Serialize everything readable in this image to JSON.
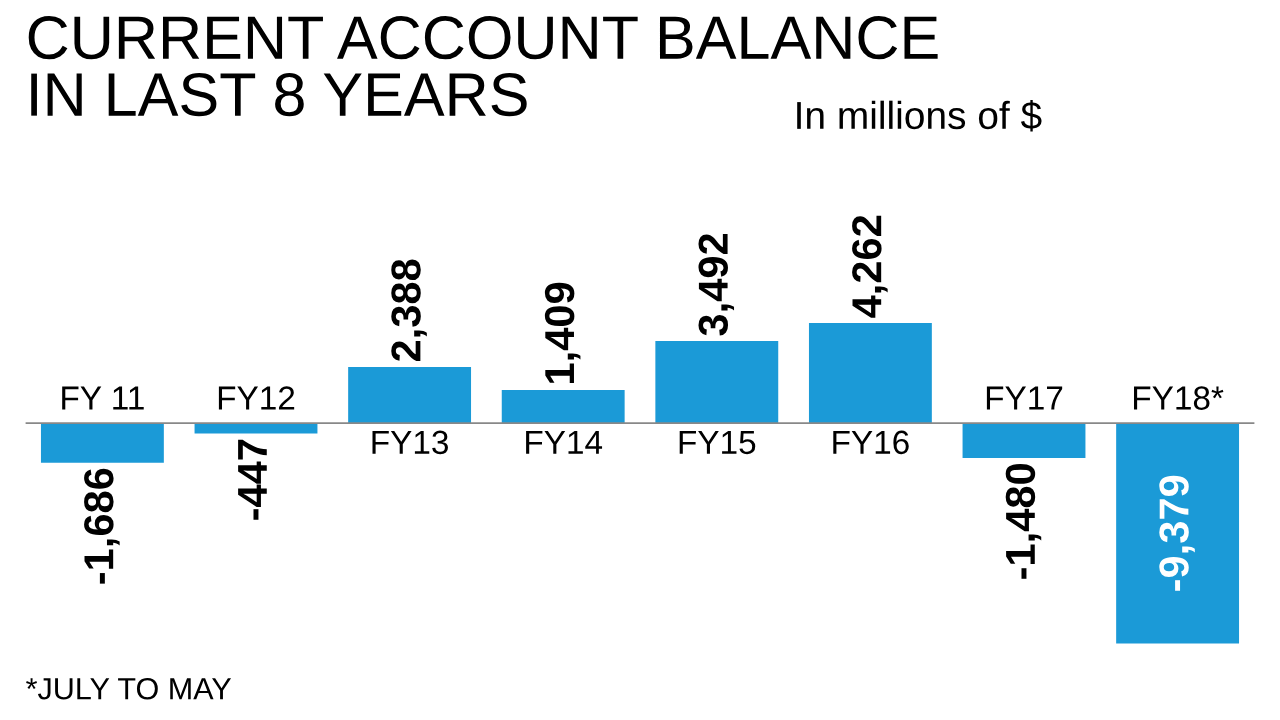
{
  "chart_data": {
    "type": "bar",
    "title": "CURRENT ACCOUNT BALANCE\nIN LAST 8 YEARS",
    "subtitle": "In millions of $",
    "categories": [
      "FY 11",
      "FY12",
      "FY13",
      "FY14",
      "FY15",
      "FY16",
      "FY17",
      "FY18*"
    ],
    "values": [
      -1686,
      -447,
      2388,
      1409,
      3492,
      4262,
      -1480,
      -9379
    ],
    "value_labels": [
      "-1,686",
      "-447",
      "2,388",
      "1,409",
      "3,492",
      "4,262",
      "-1,480",
      "-9,379"
    ],
    "color": "#1b9ad7",
    "annotations": [
      "*JULY TO MAY"
    ]
  }
}
